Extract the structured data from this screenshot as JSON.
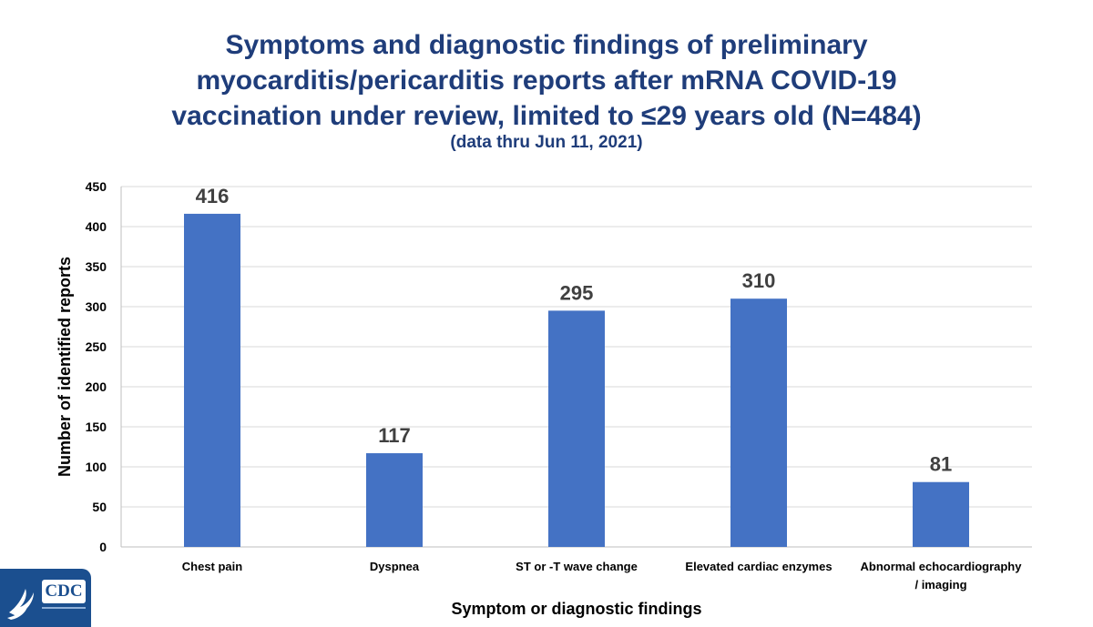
{
  "chart_data": {
    "type": "bar",
    "title_lines": [
      "Symptoms and diagnostic findings of preliminary",
      "myocarditis/pericarditis reports after mRNA COVID-19",
      "vaccination under review, limited to ≤29 years old (N=484)"
    ],
    "subtitle": "(data thru Jun 11, 2021)",
    "categories": [
      [
        "Chest pain"
      ],
      [
        "Dyspnea"
      ],
      [
        "ST or -T wave change"
      ],
      [
        "Elevated cardiac enzymes"
      ],
      [
        "Abnormal echocardiography",
        "/ imaging"
      ]
    ],
    "values": [
      416,
      117,
      295,
      310,
      81
    ],
    "data_labels": [
      "416",
      "117",
      "295",
      "310",
      "81"
    ],
    "xlabel": "Symptom or diagnostic findings",
    "ylabel": "Number of identified reports",
    "ylim": [
      0,
      450
    ],
    "yticks": [
      0,
      50,
      100,
      150,
      200,
      250,
      300,
      350,
      400,
      450
    ],
    "grid": true,
    "bar_color": "#4472c4"
  },
  "logo": {
    "agency": "CDC",
    "brand_color": "#1b4f8f"
  }
}
